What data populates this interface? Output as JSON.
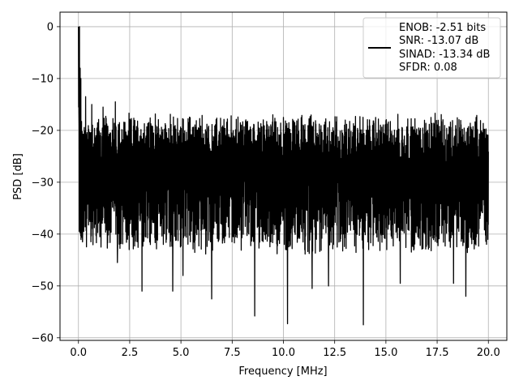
{
  "chart_data": {
    "type": "line",
    "title": "",
    "xlabel": "Frequency [MHz]",
    "ylabel": "PSD [dB]",
    "xlim": [
      -0.9,
      20.9
    ],
    "ylim": [
      -60.5,
      2.8
    ],
    "xticks": [
      0.0,
      2.5,
      5.0,
      7.5,
      10.0,
      12.5,
      15.0,
      17.5,
      20.0
    ],
    "xtick_labels": [
      "0.0",
      "2.5",
      "5.0",
      "7.5",
      "10.0",
      "12.5",
      "15.0",
      "17.5",
      "20.0"
    ],
    "yticks": [
      0,
      -10,
      -20,
      -30,
      -40,
      -50,
      -60
    ],
    "ytick_labels": [
      "0",
      "−10",
      "−20",
      "−30",
      "−40",
      "−50",
      "−60"
    ],
    "grid": true,
    "legend_position": "top-right",
    "series_color": "#000000",
    "legend": {
      "lines": [
        "ENOB: -2.51 bits",
        "SNR: -13.07 dB",
        "SINAD: -13.34 dB",
        "SFDR: 0.08"
      ]
    },
    "noise_model": {
      "x_start": 0.0,
      "x_end": 20.0,
      "peak_at_zero": 0.0,
      "baseline_start": -27.0,
      "baseline_end": -29.0,
      "top_envelope": -18,
      "bottom_envelope": -42,
      "deep_dips": [
        {
          "x": 0.2,
          "y": -41.5
        },
        {
          "x": 1.1,
          "y": -42.5
        },
        {
          "x": 1.9,
          "y": -45.5
        },
        {
          "x": 3.1,
          "y": -51.0
        },
        {
          "x": 4.6,
          "y": -51.0
        },
        {
          "x": 5.1,
          "y": -48.0
        },
        {
          "x": 6.5,
          "y": -52.5
        },
        {
          "x": 8.6,
          "y": -55.8
        },
        {
          "x": 10.0,
          "y": -53.0
        },
        {
          "x": 10.2,
          "y": -57.3
        },
        {
          "x": 11.4,
          "y": -50.5
        },
        {
          "x": 12.2,
          "y": -50.0
        },
        {
          "x": 13.9,
          "y": -57.5
        },
        {
          "x": 15.7,
          "y": -49.5
        },
        {
          "x": 18.3,
          "y": -49.5
        },
        {
          "x": 18.9,
          "y": -52.0
        }
      ],
      "tall_peaks": [
        {
          "x": 0.05,
          "y": 0.0
        },
        {
          "x": 0.08,
          "y": -8.0
        },
        {
          "x": 0.12,
          "y": -10.0
        },
        {
          "x": 0.35,
          "y": -13.5
        },
        {
          "x": 0.65,
          "y": -15.0
        },
        {
          "x": 1.2,
          "y": -15.5
        },
        {
          "x": 1.8,
          "y": -14.5
        },
        {
          "x": 10.0,
          "y": -17.5
        },
        {
          "x": 14.5,
          "y": -17.5
        },
        {
          "x": 17.2,
          "y": -17.5
        },
        {
          "x": 19.4,
          "y": -17.5
        }
      ]
    }
  }
}
